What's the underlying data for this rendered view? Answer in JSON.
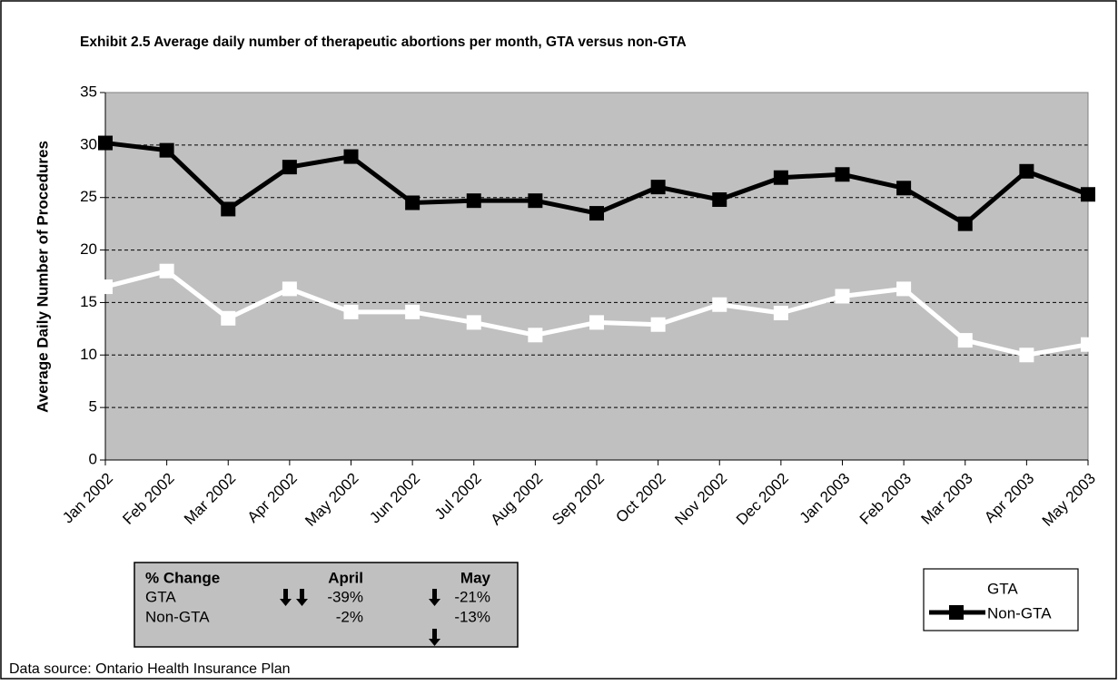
{
  "chart_data": {
    "type": "line",
    "title": "Exhibit 2.5 Average daily number of therapeutic abortions per month, GTA versus non-GTA",
    "y_label": "Average Daily Number of Procedures",
    "categories": [
      "Jan 2002",
      "Feb 2002",
      "Mar 2002",
      "Apr 2002",
      "May 2002",
      "Jun 2002",
      "Jul 2002",
      "Aug 2002",
      "Sep 2002",
      "Oct 2002",
      "Nov 2002",
      "Dec 2002",
      "Jan 2003",
      "Feb 2003",
      "Mar 2003",
      "Apr 2003",
      "May 2003"
    ],
    "series": [
      {
        "name": "GTA",
        "color": "#ffffff",
        "values": [
          16.5,
          18.0,
          13.5,
          16.3,
          14.1,
          14.1,
          13.1,
          11.9,
          13.1,
          12.9,
          14.8,
          14.0,
          15.6,
          16.3,
          11.4,
          10.0,
          11.0
        ]
      },
      {
        "name": "Non-GTA",
        "color": "#000000",
        "values": [
          30.2,
          29.5,
          23.9,
          27.9,
          28.9,
          24.5,
          24.7,
          24.7,
          23.5,
          26.0,
          24.8,
          26.9,
          27.2,
          25.9,
          22.5,
          27.5,
          25.3
        ]
      }
    ],
    "ylim": [
      0,
      35
    ],
    "yticks": [
      0,
      5,
      10,
      15,
      20,
      25,
      30,
      35
    ],
    "grid": true,
    "plot_background": "#c0c0c0",
    "legend": "bottom-right"
  },
  "change_table": {
    "header": [
      "% Change",
      "April",
      "May"
    ],
    "rows": [
      [
        "GTA",
        "-39%",
        "-21%"
      ],
      [
        "Non-GTA",
        "-2%",
        "-13%"
      ]
    ]
  },
  "source": "Data source: Ontario Health Insurance Plan"
}
